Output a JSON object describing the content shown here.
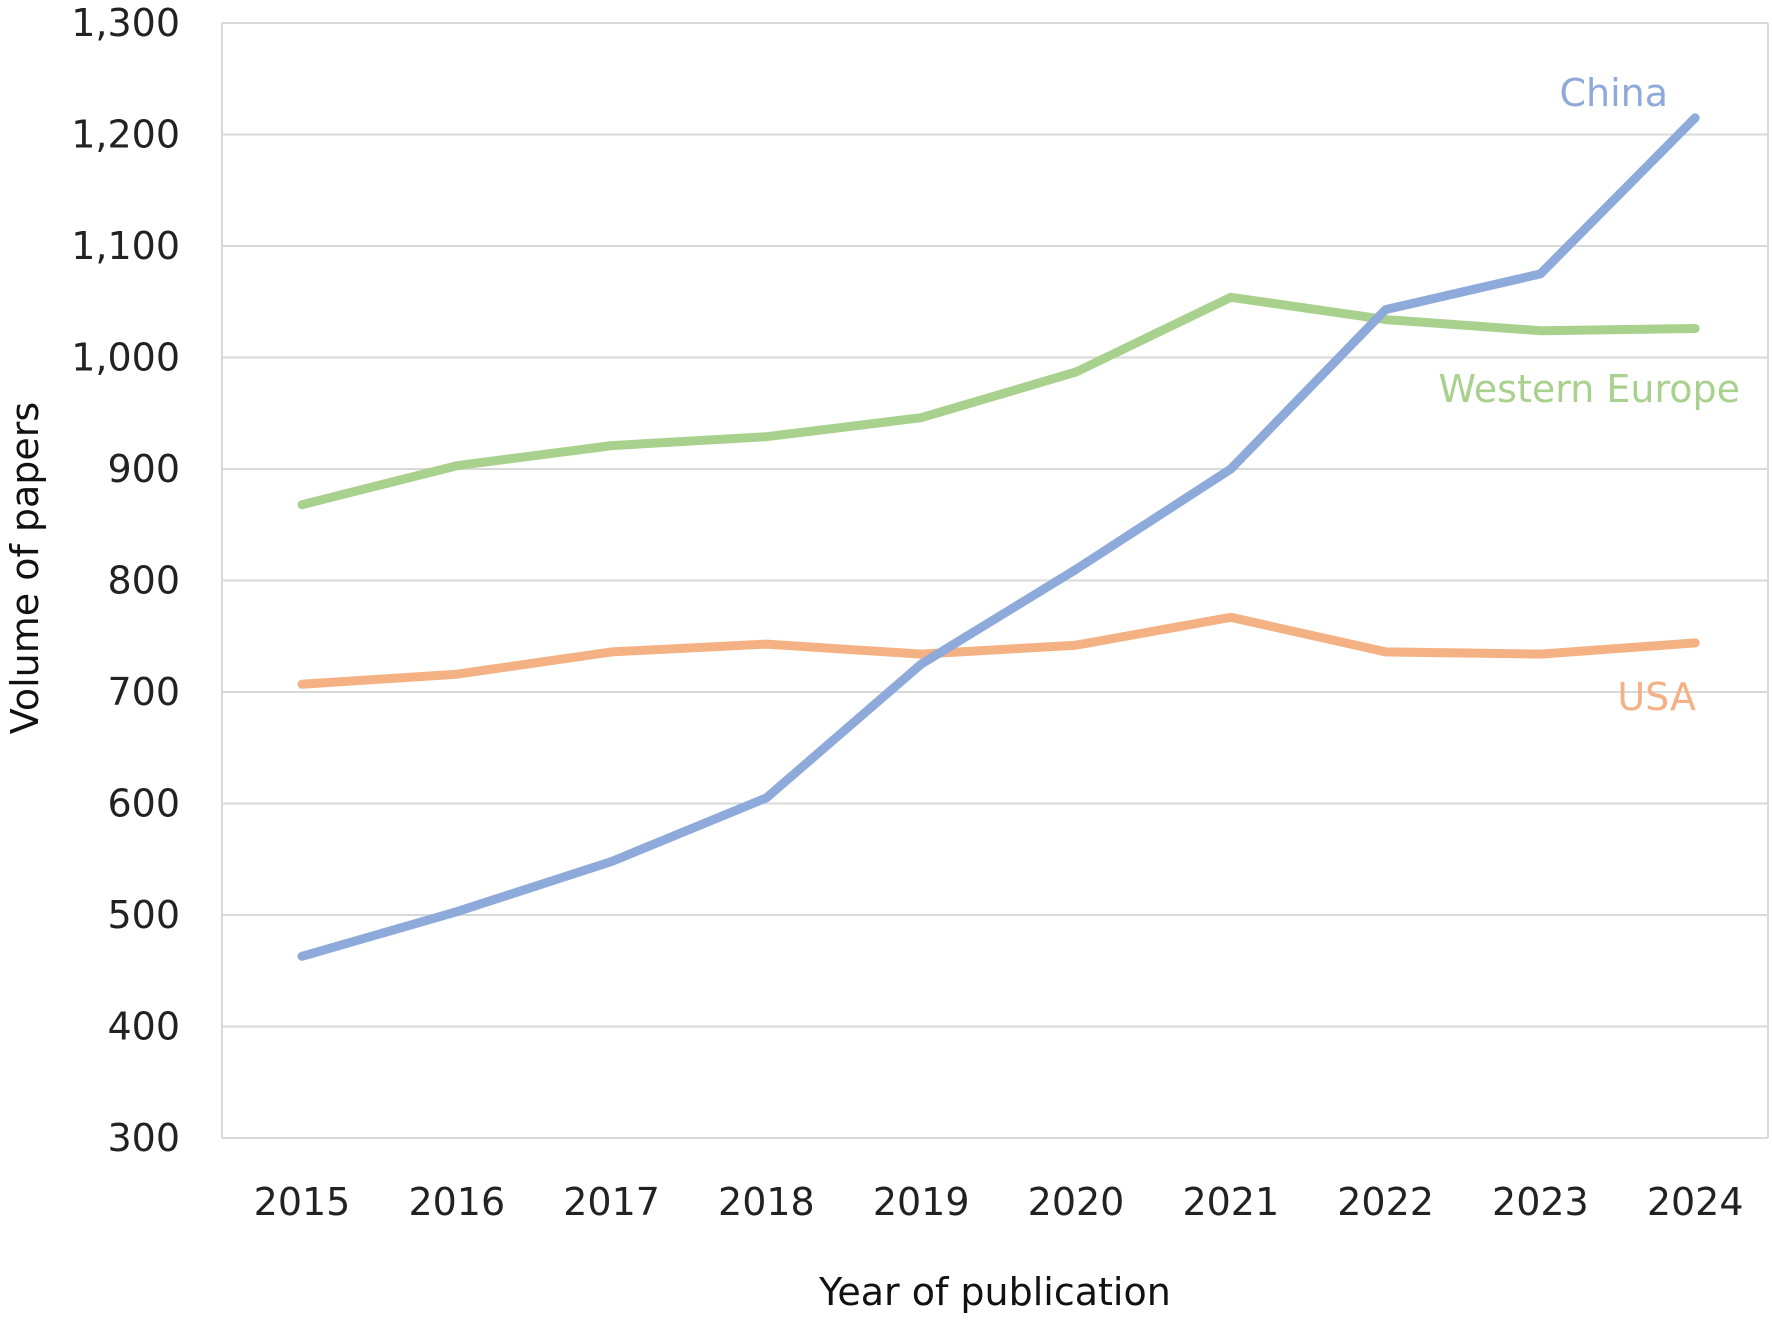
{
  "chart_data": {
    "type": "line",
    "title": "",
    "xlabel": "Year of publication",
    "ylabel": "Volume of papers",
    "x": [
      "2015",
      "2016",
      "2017",
      "2018",
      "2019",
      "2020",
      "2021",
      "2022",
      "2023",
      "2024"
    ],
    "ylim": [
      300,
      1300
    ],
    "yticks": [
      300,
      400,
      500,
      600,
      700,
      800,
      900,
      1000,
      1100,
      1200,
      1300
    ],
    "ytick_labels": [
      "300",
      "400",
      "500",
      "600",
      "700",
      "800",
      "900",
      "1,000",
      "1,100",
      "1,200",
      "1,300"
    ],
    "grid": true,
    "legend": "inline labels at right end of each line",
    "series": [
      {
        "name": "China",
        "label": "China",
        "color": "#8eaadb",
        "values": [
          463,
          503,
          548,
          605,
          725,
          810,
          900,
          1043,
          1075,
          1215
        ]
      },
      {
        "name": "Western Europe",
        "label": "Western Europe",
        "color": "#a9d18e",
        "values": [
          868,
          903,
          921,
          929,
          946,
          987,
          1054,
          1034,
          1024,
          1026
        ]
      },
      {
        "name": "USA",
        "label": "USA",
        "color": "#f4b183",
        "values": [
          707,
          716,
          736,
          743,
          734,
          742,
          767,
          736,
          734,
          744
        ]
      }
    ]
  }
}
